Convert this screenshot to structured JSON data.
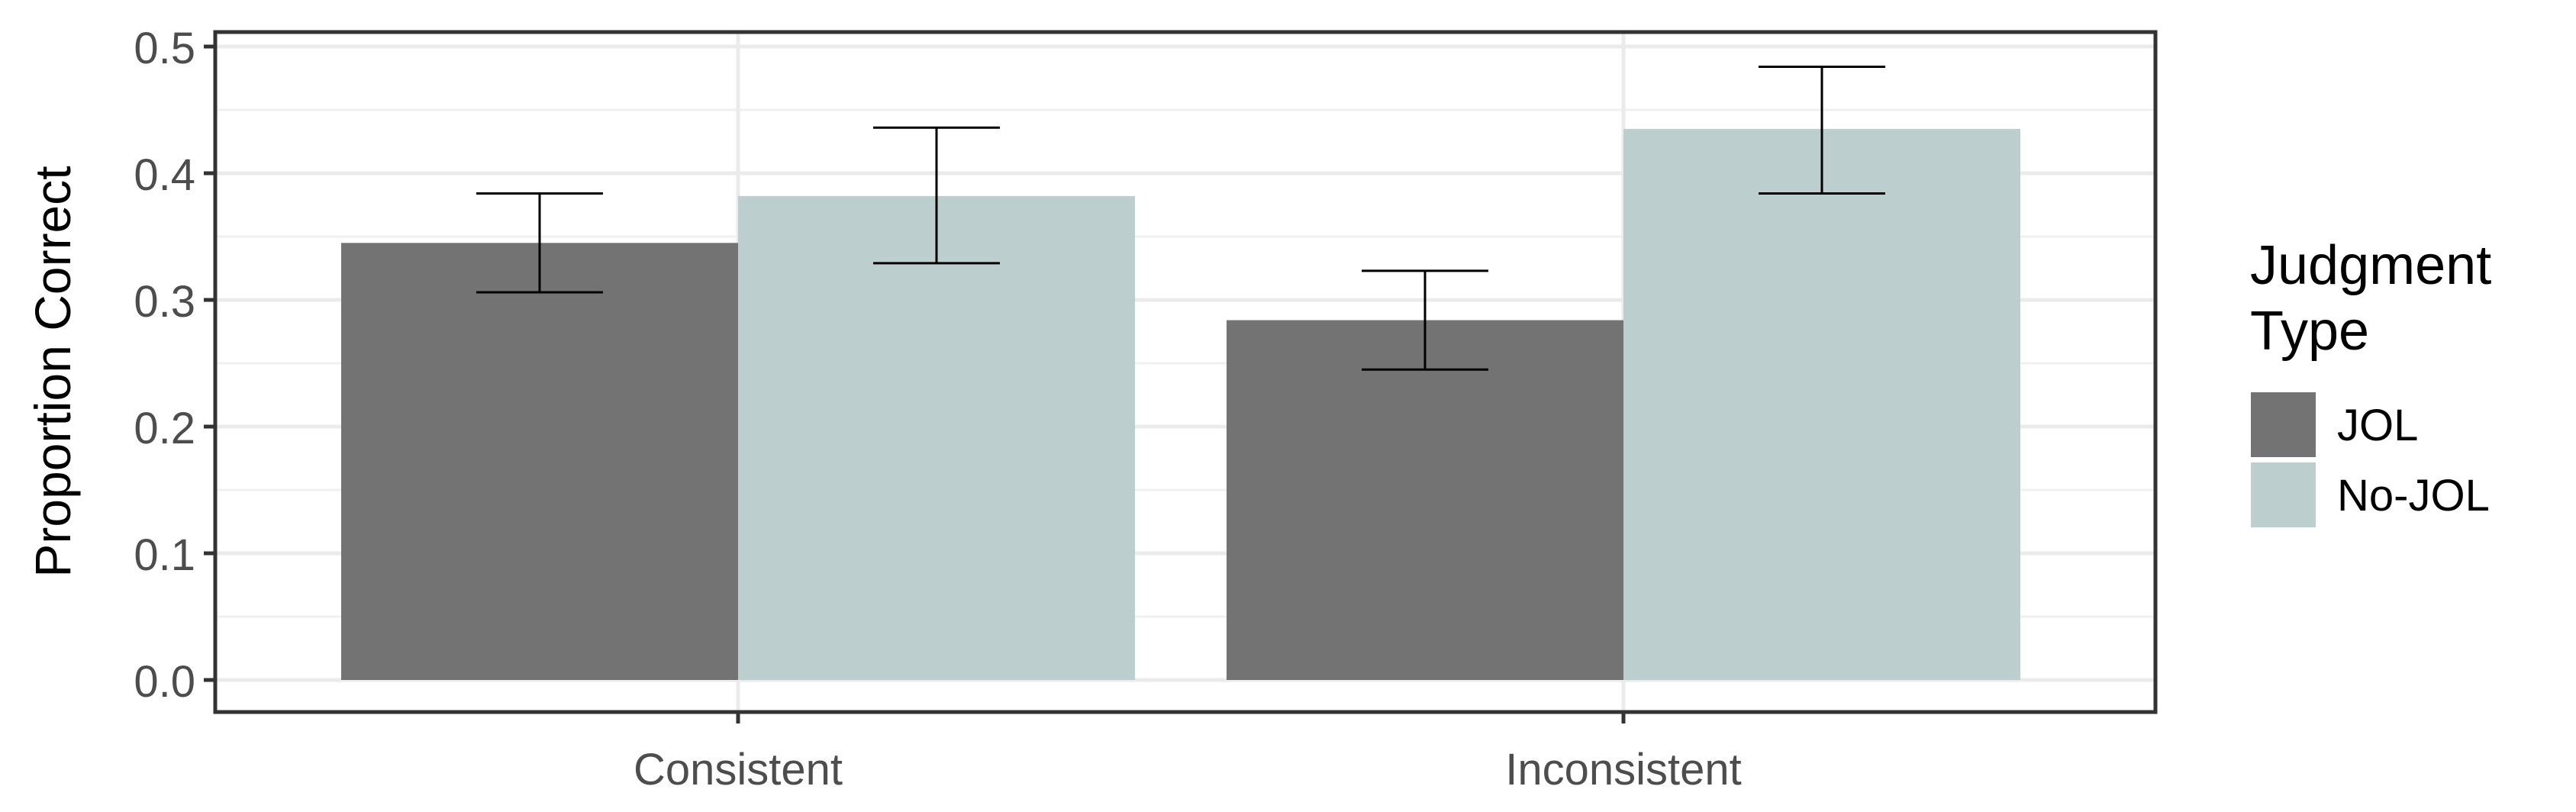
{
  "chart_data": {
    "type": "bar",
    "title": "",
    "xlabel": "",
    "ylabel": "Proportion Correct",
    "ylim": [
      0,
      0.5
    ],
    "y_ticks": [
      "0.0",
      "0.1",
      "0.2",
      "0.3",
      "0.4",
      "0.5"
    ],
    "y_tick_values": [
      0,
      0.1,
      0.2,
      0.3,
      0.4,
      0.5
    ],
    "categories": [
      "Consistent",
      "Inconsistent"
    ],
    "series": [
      {
        "name": "JOL",
        "color": "#737373",
        "values": [
          0.345,
          0.284
        ],
        "error_low": [
          0.306,
          0.245
        ],
        "error_high": [
          0.384,
          0.323
        ]
      },
      {
        "name": "No-JOL",
        "color": "#bccfce",
        "values": [
          0.382,
          0.435
        ],
        "error_low": [
          0.329,
          0.384
        ],
        "error_high": [
          0.436,
          0.484
        ]
      }
    ],
    "grid": true,
    "legend": {
      "title_line1": "Judgment",
      "title_line2": "Type",
      "position": "right"
    }
  }
}
